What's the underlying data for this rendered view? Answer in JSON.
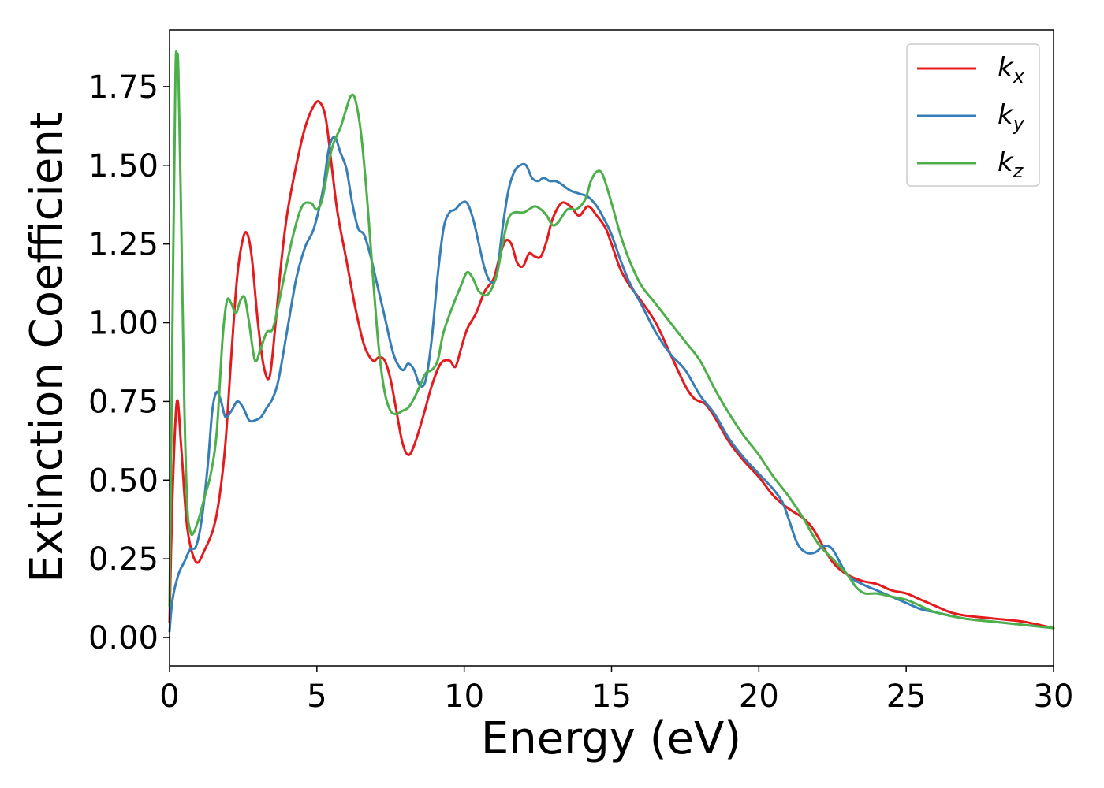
{
  "chart_data": {
    "type": "line",
    "xlabel": "Energy (eV)",
    "ylabel": "Extinction Coefficient",
    "xlim": [
      0,
      30
    ],
    "ylim": [
      -0.09,
      1.93
    ],
    "xticks": [
      0,
      5,
      10,
      15,
      20,
      25,
      30
    ],
    "yticks": [
      0.0,
      0.25,
      0.5,
      0.75,
      1.0,
      1.25,
      1.5,
      1.75
    ],
    "xtick_labels": [
      "0",
      "5",
      "10",
      "15",
      "20",
      "25",
      "30"
    ],
    "ytick_labels": [
      "0.00",
      "0.25",
      "0.50",
      "0.75",
      "1.00",
      "1.25",
      "1.50",
      "1.75"
    ],
    "grid": false,
    "legend_position": "top-right",
    "series": [
      {
        "name": "kx",
        "legend_base": "k",
        "legend_sub": "x",
        "color": "#e41a1c",
        "x": [
          0,
          0.1,
          0.25,
          0.4,
          0.6,
          0.9,
          1.2,
          1.5,
          1.7,
          1.9,
          2.1,
          2.3,
          2.5,
          2.65,
          2.8,
          3.0,
          3.2,
          3.4,
          3.6,
          3.8,
          4.0,
          4.3,
          4.6,
          4.9,
          5.1,
          5.3,
          5.5,
          5.7,
          6.0,
          6.3,
          6.6,
          6.9,
          7.1,
          7.3,
          7.5,
          7.7,
          7.9,
          8.1,
          8.3,
          8.6,
          8.9,
          9.2,
          9.5,
          9.7,
          9.9,
          10.1,
          10.4,
          10.7,
          11.0,
          11.2,
          11.4,
          11.6,
          11.8,
          12.0,
          12.2,
          12.4,
          12.6,
          12.8,
          13.0,
          13.3,
          13.6,
          13.9,
          14.2,
          14.5,
          14.8,
          15.0,
          15.3,
          15.6,
          16.0,
          16.5,
          17.0,
          17.5,
          17.8,
          18.0,
          18.2,
          18.5,
          19.0,
          19.5,
          20.0,
          20.5,
          21.0,
          21.5,
          21.8,
          22.0,
          22.5,
          23.0,
          23.5,
          24.0,
          24.5,
          25.0,
          25.5,
          26.0,
          26.5,
          27.0,
          28.0,
          29.0,
          30.0
        ],
        "values": [
          0.05,
          0.45,
          0.75,
          0.6,
          0.35,
          0.24,
          0.28,
          0.35,
          0.45,
          0.62,
          0.9,
          1.15,
          1.27,
          1.28,
          1.2,
          1.0,
          0.86,
          0.83,
          1.0,
          1.2,
          1.35,
          1.5,
          1.62,
          1.69,
          1.7,
          1.65,
          1.5,
          1.35,
          1.2,
          1.05,
          0.93,
          0.88,
          0.89,
          0.88,
          0.82,
          0.72,
          0.62,
          0.58,
          0.61,
          0.7,
          0.8,
          0.87,
          0.88,
          0.86,
          0.92,
          0.98,
          1.03,
          1.1,
          1.14,
          1.21,
          1.26,
          1.25,
          1.19,
          1.18,
          1.22,
          1.21,
          1.21,
          1.26,
          1.33,
          1.38,
          1.37,
          1.34,
          1.37,
          1.34,
          1.3,
          1.25,
          1.17,
          1.12,
          1.07,
          1.0,
          0.9,
          0.8,
          0.76,
          0.75,
          0.74,
          0.7,
          0.62,
          0.56,
          0.51,
          0.45,
          0.41,
          0.38,
          0.35,
          0.32,
          0.24,
          0.2,
          0.18,
          0.17,
          0.15,
          0.14,
          0.12,
          0.1,
          0.08,
          0.07,
          0.06,
          0.05,
          0.03
        ]
      },
      {
        "name": "ky",
        "legend_base": "k",
        "legend_sub": "y",
        "color": "#377eb8",
        "x": [
          0,
          0.1,
          0.3,
          0.5,
          0.7,
          0.9,
          1.1,
          1.3,
          1.45,
          1.6,
          1.75,
          1.9,
          2.1,
          2.3,
          2.5,
          2.7,
          2.9,
          3.1,
          3.3,
          3.5,
          3.7,
          4.0,
          4.3,
          4.6,
          4.9,
          5.2,
          5.4,
          5.6,
          5.8,
          6.0,
          6.2,
          6.4,
          6.6,
          6.8,
          7.0,
          7.3,
          7.6,
          7.9,
          8.1,
          8.3,
          8.5,
          8.7,
          8.9,
          9.1,
          9.3,
          9.5,
          9.7,
          9.9,
          10.1,
          10.3,
          10.5,
          10.7,
          10.9,
          11.1,
          11.3,
          11.5,
          11.7,
          11.9,
          12.1,
          12.3,
          12.5,
          12.7,
          12.9,
          13.1,
          13.3,
          13.6,
          13.9,
          14.2,
          14.5,
          14.8,
          15.0,
          15.3,
          15.6,
          16.0,
          16.5,
          17.0,
          17.5,
          18.0,
          18.5,
          19.0,
          19.5,
          20.0,
          20.5,
          20.8,
          21.0,
          21.3,
          21.6,
          21.9,
          22.2,
          22.5,
          23.0,
          23.5,
          24.0,
          24.5,
          25.0,
          25.5,
          26.0,
          27.0,
          28.0,
          29.0,
          30.0
        ],
        "values": [
          0.02,
          0.12,
          0.2,
          0.24,
          0.28,
          0.29,
          0.38,
          0.55,
          0.72,
          0.78,
          0.75,
          0.7,
          0.72,
          0.75,
          0.73,
          0.69,
          0.69,
          0.7,
          0.73,
          0.76,
          0.82,
          0.98,
          1.14,
          1.24,
          1.3,
          1.42,
          1.55,
          1.59,
          1.54,
          1.49,
          1.38,
          1.3,
          1.28,
          1.22,
          1.14,
          1.02,
          0.9,
          0.85,
          0.87,
          0.85,
          0.8,
          0.82,
          0.95,
          1.15,
          1.3,
          1.35,
          1.36,
          1.38,
          1.38,
          1.33,
          1.25,
          1.17,
          1.13,
          1.15,
          1.3,
          1.42,
          1.48,
          1.5,
          1.5,
          1.46,
          1.45,
          1.46,
          1.45,
          1.45,
          1.44,
          1.42,
          1.41,
          1.4,
          1.37,
          1.32,
          1.28,
          1.2,
          1.13,
          1.06,
          0.97,
          0.9,
          0.85,
          0.77,
          0.71,
          0.63,
          0.57,
          0.52,
          0.47,
          0.43,
          0.38,
          0.3,
          0.27,
          0.27,
          0.29,
          0.28,
          0.2,
          0.17,
          0.15,
          0.13,
          0.11,
          0.09,
          0.08,
          0.06,
          0.05,
          0.04,
          0.03
        ]
      },
      {
        "name": "kz",
        "legend_base": "k",
        "legend_sub": "z",
        "color": "#4daf4a",
        "x": [
          0,
          0.1,
          0.2,
          0.25,
          0.3,
          0.4,
          0.5,
          0.6,
          0.7,
          0.8,
          1.0,
          1.2,
          1.4,
          1.6,
          1.8,
          1.95,
          2.1,
          2.25,
          2.4,
          2.55,
          2.7,
          2.9,
          3.1,
          3.3,
          3.5,
          3.7,
          3.9,
          4.2,
          4.5,
          4.8,
          5.0,
          5.2,
          5.5,
          5.8,
          6.0,
          6.15,
          6.3,
          6.5,
          6.7,
          6.9,
          7.1,
          7.3,
          7.5,
          7.7,
          7.9,
          8.1,
          8.3,
          8.5,
          8.7,
          8.9,
          9.1,
          9.3,
          9.6,
          9.9,
          10.1,
          10.3,
          10.5,
          10.8,
          11.1,
          11.3,
          11.5,
          11.7,
          12.0,
          12.2,
          12.4,
          12.6,
          12.8,
          13.0,
          13.2,
          13.5,
          13.8,
          14.1,
          14.3,
          14.5,
          14.7,
          15.0,
          15.3,
          15.6,
          16.0,
          16.5,
          17.0,
          17.5,
          18.0,
          18.5,
          19.0,
          19.5,
          20.0,
          20.5,
          21.0,
          21.5,
          22.0,
          22.5,
          23.0,
          23.3,
          23.6,
          24.0,
          24.5,
          25.0,
          25.5,
          26.0,
          27.0,
          28.0,
          29.0,
          30.0
        ],
        "values": [
          0.1,
          1.0,
          1.78,
          1.84,
          1.8,
          1.3,
          0.75,
          0.42,
          0.34,
          0.33,
          0.38,
          0.45,
          0.52,
          0.65,
          0.95,
          1.07,
          1.06,
          1.03,
          1.07,
          1.08,
          1.0,
          0.88,
          0.92,
          0.97,
          0.98,
          1.06,
          1.15,
          1.28,
          1.37,
          1.38,
          1.36,
          1.4,
          1.55,
          1.62,
          1.68,
          1.72,
          1.71,
          1.6,
          1.4,
          1.15,
          0.92,
          0.78,
          0.72,
          0.71,
          0.72,
          0.73,
          0.76,
          0.8,
          0.84,
          0.85,
          0.88,
          0.97,
          1.05,
          1.12,
          1.16,
          1.14,
          1.1,
          1.09,
          1.15,
          1.25,
          1.33,
          1.35,
          1.35,
          1.36,
          1.37,
          1.36,
          1.34,
          1.31,
          1.32,
          1.36,
          1.36,
          1.39,
          1.45,
          1.48,
          1.47,
          1.38,
          1.28,
          1.2,
          1.12,
          1.06,
          1.0,
          0.94,
          0.88,
          0.79,
          0.71,
          0.64,
          0.58,
          0.51,
          0.45,
          0.38,
          0.3,
          0.25,
          0.2,
          0.16,
          0.14,
          0.14,
          0.13,
          0.12,
          0.1,
          0.08,
          0.06,
          0.05,
          0.04,
          0.03
        ]
      }
    ]
  }
}
